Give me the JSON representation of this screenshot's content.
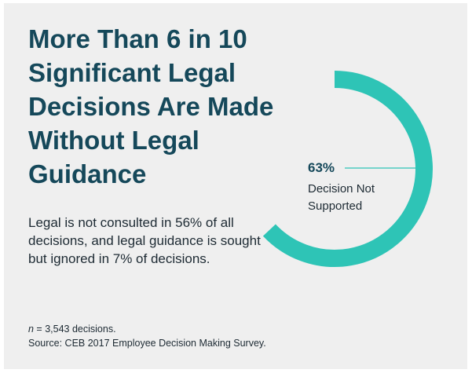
{
  "headline": "More Than 6 in 10 Significant Legal Decisions Are Made Without Legal Guidance",
  "subtext": "Legal is not consulted in 56% of all decisions, and legal guidance is sought but ignored in 7% of decisions.",
  "footnote": {
    "n_label": "n",
    "n_text": " = 3,543 decisions.",
    "source": "Source: CEB 2017 Employee Decision Making Survey."
  },
  "colors": {
    "background": "#efefef",
    "headline": "#15485a",
    "ring": "#2ec4b6",
    "body_text": "#1d2a33"
  },
  "chart_data": {
    "type": "pie",
    "style": "donut-arc",
    "title": "",
    "slices": [
      {
        "label": "Decision Not Supported",
        "value": 63,
        "value_label": "63%",
        "color": "#2ec4b6"
      },
      {
        "label": "",
        "value": 37,
        "value_label": "",
        "color": "transparent"
      }
    ]
  }
}
